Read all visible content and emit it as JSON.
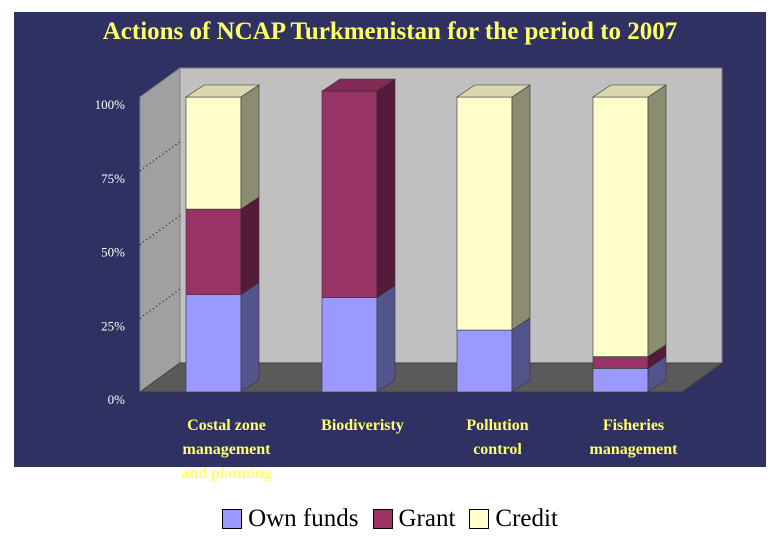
{
  "chart_data": {
    "type": "bar",
    "stacked": true,
    "percent_stacked": true,
    "title": "Actions of NCAP Turkmenistan for the period to 2007",
    "categories": [
      [
        "Costal zone",
        "management",
        "and planning"
      ],
      [
        "Biodiveristy"
      ],
      [
        "Pollution",
        "control"
      ],
      [
        "Fisheries",
        "management"
      ]
    ],
    "series": [
      {
        "name": "Own funds",
        "color": "#9999ff",
        "values": [
          33,
          32,
          21,
          8
        ]
      },
      {
        "name": "Grant",
        "color": "#993366",
        "values": [
          29,
          70,
          0,
          4
        ]
      },
      {
        "name": "Credit",
        "color": "#ffffcc",
        "values": [
          38,
          0,
          79,
          88
        ]
      }
    ],
    "yticks": [
      "0%",
      "25%",
      "50%",
      "75%",
      "100%"
    ],
    "ylim": [
      0,
      100
    ],
    "legend_position": "bottom"
  }
}
